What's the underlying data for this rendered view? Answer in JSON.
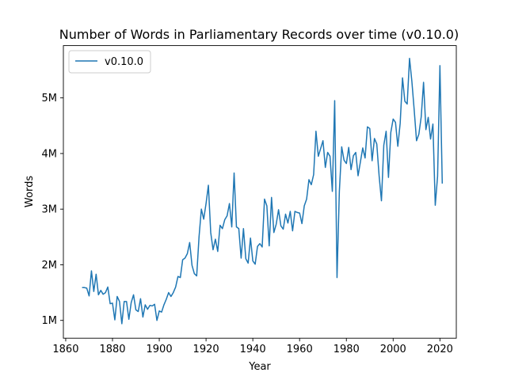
{
  "chart_data": {
    "type": "line",
    "title": "Number of Words in Parliamentary Records over time (v0.10.0)",
    "xlabel": "Year",
    "ylabel": "Words",
    "xlim": [
      1859,
      2027
    ],
    "ylim": [
      680000,
      5940000
    ],
    "xticks": [
      1860,
      1880,
      1900,
      1920,
      1940,
      1960,
      1980,
      2000,
      2020
    ],
    "yticks": [
      {
        "value": 1000000,
        "label": "1M"
      },
      {
        "value": 2000000,
        "label": "2M"
      },
      {
        "value": 3000000,
        "label": "3M"
      },
      {
        "value": 4000000,
        "label": "4M"
      },
      {
        "value": 5000000,
        "label": "5M"
      }
    ],
    "grid": false,
    "legend": "top-left",
    "color": "#1f77b4",
    "series": [
      {
        "name": "v0.10.0",
        "x": [
          1867,
          1868,
          1869,
          1870,
          1871,
          1872,
          1873,
          1874,
          1875,
          1876,
          1877,
          1878,
          1879,
          1880,
          1881,
          1882,
          1883,
          1884,
          1885,
          1886,
          1887,
          1888,
          1889,
          1890,
          1891,
          1892,
          1893,
          1894,
          1895,
          1896,
          1897,
          1898,
          1899,
          1900,
          1901,
          1902,
          1903,
          1904,
          1905,
          1906,
          1907,
          1908,
          1909,
          1910,
          1911,
          1912,
          1913,
          1914,
          1915,
          1916,
          1917,
          1918,
          1919,
          1920,
          1921,
          1922,
          1923,
          1924,
          1925,
          1926,
          1927,
          1928,
          1929,
          1930,
          1931,
          1932,
          1933,
          1934,
          1935,
          1936,
          1937,
          1938,
          1939,
          1940,
          1941,
          1942,
          1943,
          1944,
          1945,
          1946,
          1947,
          1948,
          1949,
          1950,
          1951,
          1952,
          1953,
          1954,
          1955,
          1956,
          1957,
          1958,
          1959,
          1960,
          1961,
          1962,
          1963,
          1964,
          1965,
          1966,
          1967,
          1968,
          1969,
          1970,
          1971,
          1972,
          1973,
          1974,
          1975,
          1976,
          1977,
          1978,
          1979,
          1980,
          1981,
          1982,
          1983,
          1984,
          1985,
          1986,
          1987,
          1988,
          1989,
          1990,
          1991,
          1992,
          1993,
          1994,
          1995,
          1996,
          1997,
          1998,
          1999,
          2000,
          2001,
          2002,
          2003,
          2004,
          2005,
          2006,
          2007,
          2008,
          2009,
          2010,
          2011,
          2012,
          2013,
          2014,
          2015,
          2016,
          2017,
          2018,
          2019,
          2020,
          2021
        ],
        "values": [
          1590000,
          1590000,
          1580000,
          1440000,
          1890000,
          1520000,
          1830000,
          1460000,
          1540000,
          1470000,
          1500000,
          1600000,
          1300000,
          1310000,
          1010000,
          1430000,
          1340000,
          940000,
          1340000,
          1340000,
          1020000,
          1320000,
          1460000,
          1190000,
          1160000,
          1390000,
          1060000,
          1280000,
          1200000,
          1270000,
          1260000,
          1290000,
          1000000,
          1170000,
          1150000,
          1280000,
          1380000,
          1500000,
          1430000,
          1500000,
          1600000,
          1790000,
          1770000,
          2090000,
          2120000,
          2200000,
          2400000,
          1990000,
          1840000,
          1800000,
          2500000,
          3000000,
          2820000,
          3100000,
          3430000,
          2580000,
          2270000,
          2460000,
          2240000,
          2710000,
          2650000,
          2810000,
          2880000,
          3100000,
          2680000,
          3650000,
          2680000,
          2650000,
          2120000,
          2650000,
          2110000,
          2030000,
          2480000,
          2070000,
          2010000,
          2330000,
          2380000,
          2320000,
          3180000,
          3060000,
          2340000,
          3210000,
          2580000,
          2730000,
          2990000,
          2700000,
          2640000,
          2910000,
          2750000,
          2960000,
          2610000,
          2960000,
          2940000,
          2930000,
          2740000,
          3060000,
          3180000,
          3530000,
          3440000,
          3620000,
          4400000,
          3950000,
          4090000,
          4230000,
          3750000,
          4020000,
          3950000,
          3320000,
          4950000,
          1770000,
          3320000,
          4120000,
          3880000,
          3820000,
          4110000,
          3710000,
          3960000,
          4020000,
          3600000,
          3850000,
          4100000,
          3920000,
          4480000,
          4450000,
          3870000,
          4270000,
          4170000,
          3600000,
          3150000,
          4150000,
          4400000,
          3570000,
          4380000,
          4620000,
          4560000,
          4130000,
          4540000,
          5360000,
          4940000,
          4890000,
          5710000,
          5300000,
          4780000,
          4230000,
          4350000,
          4660000,
          5280000,
          4430000,
          4650000,
          4260000,
          4530000,
          3070000,
          3590000,
          5580000,
          3460000
        ]
      }
    ]
  }
}
